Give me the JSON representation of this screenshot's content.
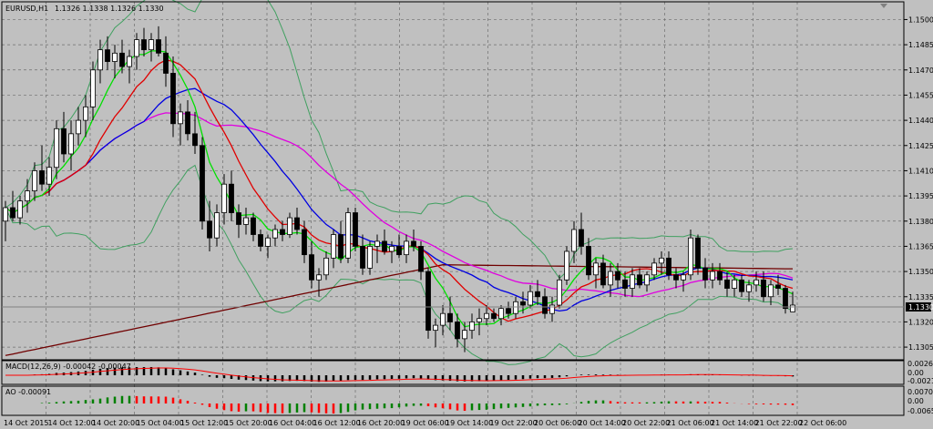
{
  "main": {
    "symbol": "EURUSD,H1",
    "ohlc": "1.1326 1.1338 1.1326 1.1330",
    "price_ticks": [
      "1.1500",
      "1.1485",
      "1.1470",
      "1.1455",
      "1.1440",
      "1.1425",
      "1.1410",
      "1.1395",
      "1.1380",
      "1.1365",
      "1.1350",
      "1.1335",
      "1.1320",
      "1.1305"
    ],
    "current_price": "1.1330"
  },
  "macd": {
    "label": "MACD(12,26,9) -0.00042 -0.00047",
    "ticks": [
      "0.00261",
      "0.00",
      "-0.00212"
    ]
  },
  "ao": {
    "label": "AO -0.00091",
    "ticks": [
      "0.00705",
      "0.00",
      "-0.00655"
    ]
  },
  "time_labels": [
    "14 Oct 2015",
    "14 Oct 12:00",
    "14 Oct 20:00",
    "15 Oct 04:00",
    "15 Oct 12:00",
    "15 Oct 20:00",
    "16 Oct 04:00",
    "16 Oct 12:00",
    "16 Oct 20:00",
    "19 Oct 06:00",
    "19 Oct 14:00",
    "19 Oct 22:00",
    "20 Oct 06:00",
    "20 Oct 14:00",
    "20 Oct 22:00",
    "21 Oct 06:00",
    "21 Oct 14:00",
    "21 Oct 22:00",
    "22 Oct 06:00"
  ],
  "colors": {
    "background": "#c0c0c0",
    "grid": "#6e6e6e",
    "bull": "#ffffff",
    "bear": "#000000",
    "ma_fast": "#00e000",
    "ma_red": "#e00000",
    "ma_blue": "#0000e0",
    "ma_magenta": "#e000e0",
    "ma_slow": "#700000",
    "bands": "#40a060",
    "ao_up": "#008000",
    "ao_down": "#ff0000",
    "macd_signal": "#ff0000"
  },
  "chart_data": {
    "type": "candlestick",
    "symbol": "EURUSD",
    "timeframe": "H1",
    "y_range": [
      1.1298,
      1.151
    ],
    "candles": [
      [
        1.138,
        1.1392,
        1.1368,
        1.1388
      ],
      [
        1.1388,
        1.1398,
        1.138,
        1.1382
      ],
      [
        1.1382,
        1.1395,
        1.1378,
        1.1392
      ],
      [
        1.1392,
        1.1405,
        1.1385,
        1.1398
      ],
      [
        1.1398,
        1.1415,
        1.1392,
        1.141
      ],
      [
        1.141,
        1.1425,
        1.1398,
        1.1402
      ],
      [
        1.1402,
        1.1418,
        1.1395,
        1.1412
      ],
      [
        1.1412,
        1.144,
        1.1405,
        1.1435
      ],
      [
        1.1435,
        1.1445,
        1.1415,
        1.142
      ],
      [
        1.142,
        1.144,
        1.141,
        1.1432
      ],
      [
        1.1432,
        1.1448,
        1.1425,
        1.144
      ],
      [
        1.144,
        1.1455,
        1.143,
        1.1448
      ],
      [
        1.1448,
        1.1475,
        1.144,
        1.147
      ],
      [
        1.147,
        1.1488,
        1.1462,
        1.1482
      ],
      [
        1.1482,
        1.149,
        1.147,
        1.1475
      ],
      [
        1.1475,
        1.1485,
        1.1465,
        1.148
      ],
      [
        1.148,
        1.1488,
        1.1468,
        1.1472
      ],
      [
        1.1472,
        1.1482,
        1.1462,
        1.1478
      ],
      [
        1.1478,
        1.1492,
        1.147,
        1.1488
      ],
      [
        1.1488,
        1.1495,
        1.1478,
        1.1482
      ],
      [
        1.1482,
        1.1492,
        1.1475,
        1.1488
      ],
      [
        1.1488,
        1.1496,
        1.1478,
        1.148
      ],
      [
        1.148,
        1.149,
        1.146,
        1.1468
      ],
      [
        1.1468,
        1.1478,
        1.143,
        1.1438
      ],
      [
        1.1438,
        1.145,
        1.1425,
        1.1445
      ],
      [
        1.1445,
        1.1452,
        1.1428,
        1.1432
      ],
      [
        1.1432,
        1.1445,
        1.142,
        1.1425
      ],
      [
        1.1425,
        1.143,
        1.1375,
        1.138
      ],
      [
        1.138,
        1.1392,
        1.1362,
        1.137
      ],
      [
        1.137,
        1.139,
        1.1365,
        1.1385
      ],
      [
        1.1385,
        1.1408,
        1.1378,
        1.1402
      ],
      [
        1.1402,
        1.141,
        1.138,
        1.1385
      ],
      [
        1.1385,
        1.139,
        1.137,
        1.1378
      ],
      [
        1.1378,
        1.1388,
        1.1372,
        1.1382
      ],
      [
        1.1382,
        1.1385,
        1.1368,
        1.1372
      ],
      [
        1.1372,
        1.1375,
        1.1362,
        1.1365
      ],
      [
        1.1365,
        1.1372,
        1.1358,
        1.137
      ],
      [
        1.137,
        1.1378,
        1.1365,
        1.1375
      ],
      [
        1.1375,
        1.138,
        1.1368,
        1.1372
      ],
      [
        1.1372,
        1.1385,
        1.137,
        1.1382
      ],
      [
        1.1382,
        1.1388,
        1.1372,
        1.1375
      ],
      [
        1.1375,
        1.138,
        1.1355,
        1.136
      ],
      [
        1.136,
        1.1368,
        1.134,
        1.1345
      ],
      [
        1.1345,
        1.1352,
        1.1335,
        1.1348
      ],
      [
        1.1348,
        1.1362,
        1.1345,
        1.1358
      ],
      [
        1.1358,
        1.1375,
        1.1352,
        1.1372
      ],
      [
        1.1372,
        1.138,
        1.1355,
        1.1358
      ],
      [
        1.1358,
        1.1388,
        1.1355,
        1.1385
      ],
      [
        1.1385,
        1.1388,
        1.1362,
        1.1365
      ],
      [
        1.1365,
        1.1372,
        1.1348,
        1.1352
      ],
      [
        1.1352,
        1.1368,
        1.1348,
        1.1365
      ],
      [
        1.1365,
        1.1372,
        1.1355,
        1.1368
      ],
      [
        1.1368,
        1.1375,
        1.136,
        1.1362
      ],
      [
        1.1362,
        1.1368,
        1.1355,
        1.1365
      ],
      [
        1.1365,
        1.1372,
        1.1358,
        1.136
      ],
      [
        1.136,
        1.1372,
        1.1355,
        1.1368
      ],
      [
        1.1368,
        1.1375,
        1.1362,
        1.1365
      ],
      [
        1.1365,
        1.1368,
        1.1345,
        1.135
      ],
      [
        1.135,
        1.1352,
        1.131,
        1.1315
      ],
      [
        1.1315,
        1.1322,
        1.1305,
        1.1318
      ],
      [
        1.1318,
        1.133,
        1.1312,
        1.1325
      ],
      [
        1.1325,
        1.1335,
        1.1315,
        1.132
      ],
      [
        1.132,
        1.1325,
        1.1305,
        1.131
      ],
      [
        1.131,
        1.132,
        1.1302,
        1.1315
      ],
      [
        1.1315,
        1.1325,
        1.131,
        1.132
      ],
      [
        1.132,
        1.1328,
        1.1312,
        1.1322
      ],
      [
        1.1322,
        1.133,
        1.1318,
        1.1325
      ],
      [
        1.1325,
        1.1328,
        1.132,
        1.1322
      ],
      [
        1.1322,
        1.133,
        1.1318,
        1.1328
      ],
      [
        1.1328,
        1.1332,
        1.1322,
        1.1325
      ],
      [
        1.1325,
        1.1335,
        1.1322,
        1.1332
      ],
      [
        1.1332,
        1.1338,
        1.1325,
        1.133
      ],
      [
        1.133,
        1.1342,
        1.1328,
        1.1338
      ],
      [
        1.1338,
        1.1345,
        1.133,
        1.1335
      ],
      [
        1.1335,
        1.134,
        1.1322,
        1.1325
      ],
      [
        1.1325,
        1.1335,
        1.132,
        1.133
      ],
      [
        1.133,
        1.1348,
        1.1328,
        1.1345
      ],
      [
        1.1345,
        1.1365,
        1.1342,
        1.1362
      ],
      [
        1.1362,
        1.138,
        1.1355,
        1.1375
      ],
      [
        1.1375,
        1.1385,
        1.136,
        1.1365
      ],
      [
        1.1365,
        1.137,
        1.1345,
        1.1348
      ],
      [
        1.1348,
        1.1358,
        1.134,
        1.1355
      ],
      [
        1.1355,
        1.136,
        1.134,
        1.1342
      ],
      [
        1.1342,
        1.1355,
        1.1335,
        1.135
      ],
      [
        1.135,
        1.1355,
        1.134,
        1.1345
      ],
      [
        1.1345,
        1.135,
        1.1335,
        1.134
      ],
      [
        1.134,
        1.1352,
        1.1335,
        1.1348
      ],
      [
        1.1348,
        1.1352,
        1.134,
        1.1342
      ],
      [
        1.1342,
        1.135,
        1.1338,
        1.1348
      ],
      [
        1.1348,
        1.1358,
        1.1345,
        1.1355
      ],
      [
        1.1355,
        1.1362,
        1.1348,
        1.1358
      ],
      [
        1.1358,
        1.1362,
        1.1345,
        1.1348
      ],
      [
        1.1348,
        1.1352,
        1.134,
        1.1345
      ],
      [
        1.1345,
        1.135,
        1.1338,
        1.1348
      ],
      [
        1.1348,
        1.1375,
        1.1345,
        1.137
      ],
      [
        1.137,
        1.1372,
        1.1348,
        1.1352
      ],
      [
        1.1352,
        1.1358,
        1.134,
        1.1345
      ],
      [
        1.1345,
        1.1355,
        1.134,
        1.135
      ],
      [
        1.135,
        1.1355,
        1.1342,
        1.1345
      ],
      [
        1.1345,
        1.135,
        1.1335,
        1.134
      ],
      [
        1.134,
        1.1348,
        1.1335,
        1.1345
      ],
      [
        1.1345,
        1.1348,
        1.1335,
        1.1338
      ],
      [
        1.1338,
        1.1345,
        1.1332,
        1.1342
      ],
      [
        1.1342,
        1.135,
        1.1338,
        1.1345
      ],
      [
        1.1345,
        1.135,
        1.1332,
        1.1335
      ],
      [
        1.1335,
        1.1345,
        1.133,
        1.1342
      ],
      [
        1.1342,
        1.1348,
        1.1336,
        1.134
      ],
      [
        1.134,
        1.1342,
        1.1325,
        1.1328
      ],
      [
        1.1326,
        1.1338,
        1.1326,
        1.133
      ]
    ]
  }
}
